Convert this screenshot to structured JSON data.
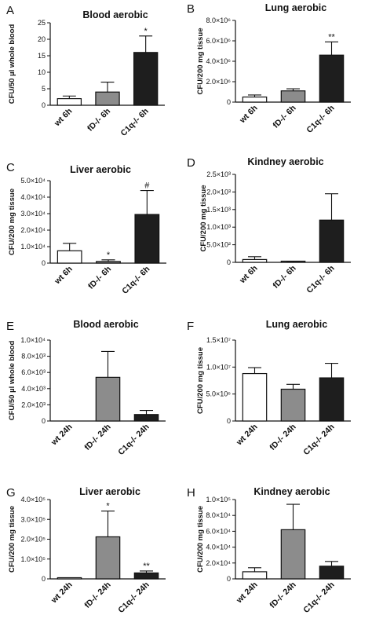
{
  "chart_data": [
    {
      "letter": "A",
      "type": "bar",
      "title": "Blood aerobic",
      "ylabel": "CFU/50 µl whole blood",
      "categories": [
        "wt 6h",
        "fD-/- 6h",
        "C1q-/- 6h"
      ],
      "values": [
        2,
        4,
        16
      ],
      "errors": [
        0.8,
        3,
        5
      ],
      "ylim": [
        0,
        25
      ],
      "yticks": [
        0,
        5,
        10,
        15,
        20,
        25
      ],
      "ytick_labels": [
        "0",
        "5",
        "10",
        "15",
        "20",
        "25"
      ],
      "annotations": [
        "",
        "",
        "*"
      ]
    },
    {
      "letter": "B",
      "type": "bar",
      "title": "Lung aerobic",
      "ylabel": "CFU/200 mg tissue",
      "categories": [
        "wt 6h",
        "fD-/- 6h",
        "C1q-/- 6h"
      ],
      "values": [
        500000,
        1100000,
        4600000
      ],
      "errors": [
        200000,
        200000,
        1300000
      ],
      "ylim": [
        0,
        8000000
      ],
      "yticks": [
        0,
        2000000,
        4000000,
        6000000,
        8000000
      ],
      "ytick_labels": [
        "0",
        "2.0×10⁶",
        "4.0×10⁶",
        "6.0×10⁶",
        "8.0×10⁶"
      ],
      "annotations": [
        "",
        "",
        "**"
      ]
    },
    {
      "letter": "C",
      "type": "bar",
      "title": "Liver aerobic",
      "ylabel": "CFU/200 mg tissue",
      "categories": [
        "wt 6h",
        "fD-/- 6h",
        "C1q-/- 6h"
      ],
      "values": [
        7500,
        1000,
        29500
      ],
      "errors": [
        4500,
        1000,
        14500
      ],
      "ylim": [
        0,
        50000
      ],
      "yticks": [
        0,
        10000,
        20000,
        30000,
        40000,
        50000
      ],
      "ytick_labels": [
        "0",
        "1.0×10⁴",
        "2.0×10⁴",
        "3.0×10⁴",
        "4.0×10⁴",
        "5.0×10⁴"
      ],
      "annotations": [
        "",
        "*",
        "#"
      ]
    },
    {
      "letter": "D",
      "type": "bar",
      "title": "Kindney aerobic",
      "ylabel": "CFU/200 mg tissue",
      "categories": [
        "wt 6h",
        "fD-/- 6h",
        "C1q-/- 6h"
      ],
      "values": [
        80,
        15,
        1200
      ],
      "errors": [
        80,
        15,
        750
      ],
      "ylim": [
        0,
        2500
      ],
      "yticks": [
        0,
        500,
        1000,
        1500,
        2000,
        2500
      ],
      "ytick_labels": [
        "0",
        "5.0×10²",
        "1.0×10³",
        "1.5×10³",
        "2.0×10³",
        "2.5×10³"
      ],
      "annotations": [
        "",
        "",
        ""
      ]
    },
    {
      "letter": "E",
      "type": "bar",
      "title": "Blood aerobic",
      "ylabel": "CFU/50 µl whole blood",
      "categories": [
        "wt 24h",
        "fD-/- 24h",
        "C1q-/- 24h"
      ],
      "values": [
        0,
        5400,
        800
      ],
      "errors": [
        0,
        3200,
        500
      ],
      "ylim": [
        0,
        10000
      ],
      "yticks": [
        0,
        2000,
        4000,
        6000,
        8000,
        10000
      ],
      "ytick_labels": [
        "0",
        "2.0×10³",
        "4.0×10³",
        "6.0×10³",
        "8.0×10³",
        "1.0×10⁴"
      ],
      "annotations": [
        "",
        "",
        ""
      ]
    },
    {
      "letter": "F",
      "type": "bar",
      "title": "Lung aerobic",
      "ylabel": "CFU/200 mg tissue",
      "categories": [
        "wt 24h",
        "fD-/- 24h",
        "C1q-/- 24h"
      ],
      "values": [
        8800000,
        5900000,
        8000000
      ],
      "errors": [
        1100000,
        900000,
        2700000
      ],
      "ylim": [
        0,
        15000000
      ],
      "yticks": [
        0,
        5000000,
        10000000,
        15000000
      ],
      "ytick_labels": [
        "0",
        "5.0×10⁶",
        "1.0×10⁷",
        "1.5×10⁷"
      ],
      "annotations": [
        "",
        "",
        ""
      ]
    },
    {
      "letter": "G",
      "type": "bar",
      "title": "Liver aerobic",
      "ylabel": "CFU/200 mg tissue",
      "categories": [
        "wt 24h",
        "fD-/- 24h",
        "C1q-/- 24h"
      ],
      "values": [
        1000,
        212000,
        30000
      ],
      "errors": [
        0,
        130000,
        10000
      ],
      "ylim": [
        0,
        400000
      ],
      "yticks": [
        0,
        100000,
        200000,
        300000,
        400000
      ],
      "ytick_labels": [
        "0",
        "1.0×10⁵",
        "2.0×10⁵",
        "3.0×10⁵",
        "4.0×10⁵"
      ],
      "annotations": [
        "",
        "*",
        "**"
      ]
    },
    {
      "letter": "H",
      "type": "bar",
      "title": "Kindney aerobic",
      "ylabel": "CFU/200 mg tissue",
      "categories": [
        "wt 24h",
        "fD-/- 24h",
        "C1q-/- 24h"
      ],
      "values": [
        9000,
        62000,
        16000
      ],
      "errors": [
        5000,
        32000,
        6000
      ],
      "ylim": [
        0,
        100000
      ],
      "yticks": [
        0,
        20000,
        40000,
        60000,
        80000,
        100000
      ],
      "ytick_labels": [
        "0",
        "2.0×10⁴",
        "4.0×10⁴",
        "6.0×10⁴",
        "8.0×10⁴",
        "1.0×10⁵"
      ],
      "annotations": [
        "",
        "",
        ""
      ]
    }
  ],
  "colors": {
    "wt": "#ffffff",
    "fD": "#8c8c8c",
    "C1q": "#1e1e1e",
    "ink": "#111111"
  }
}
